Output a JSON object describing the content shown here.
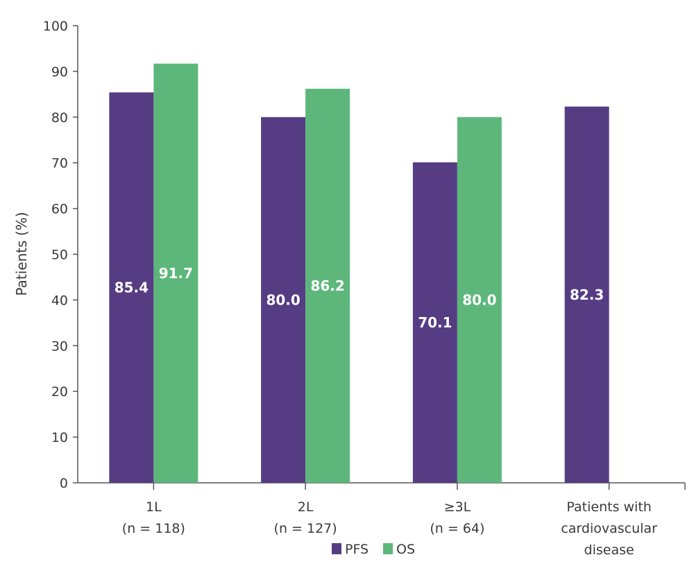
{
  "chart_data": {
    "type": "bar",
    "title": "",
    "xlabel": "",
    "ylabel": "Patients (%)",
    "ylim": [
      0,
      100
    ],
    "yticks": [
      0,
      10,
      20,
      30,
      40,
      50,
      60,
      70,
      80,
      90,
      100
    ],
    "grid": false,
    "categories": [
      [
        "1L",
        "(n = 118)"
      ],
      [
        "2L",
        "(n = 127)"
      ],
      [
        "≥3L",
        "(n = 64)"
      ],
      [
        "Patients with",
        "cardiovascular",
        "disease"
      ]
    ],
    "series": [
      {
        "name": "PFS",
        "color": "#553c83",
        "values": [
          85.4,
          80.0,
          70.1,
          82.3
        ],
        "labels": [
          "85.4",
          "80.0",
          "70.1",
          "82.3"
        ]
      },
      {
        "name": "OS",
        "color": "#5db77b",
        "values": [
          91.7,
          86.2,
          80.0,
          null
        ],
        "labels": [
          "91.7",
          "86.2",
          "80.0",
          null
        ]
      }
    ],
    "legend": {
      "position": "bottom-center",
      "entries": [
        "PFS",
        "OS"
      ]
    }
  }
}
